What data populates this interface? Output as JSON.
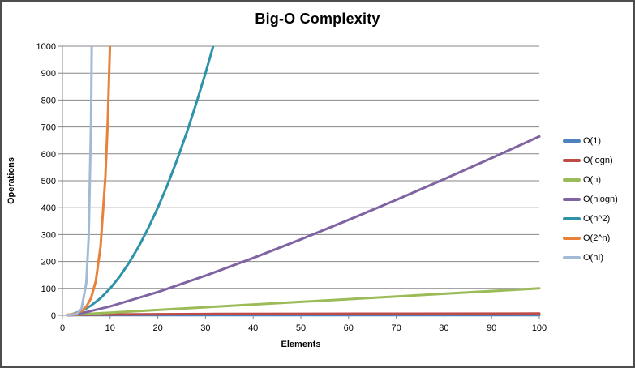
{
  "chart_data": {
    "type": "line",
    "title": "Big-O Complexity",
    "xlabel": "Elements",
    "ylabel": "Operations",
    "xlim": [
      0,
      100
    ],
    "ylim": [
      0,
      1000
    ],
    "xticks": [
      0,
      10,
      20,
      30,
      40,
      50,
      60,
      70,
      80,
      90,
      100
    ],
    "yticks": [
      0,
      100,
      200,
      300,
      400,
      500,
      600,
      700,
      800,
      900,
      1000
    ],
    "grid": "horizontal",
    "gridline_color": "#878787",
    "axis_color": "#878787",
    "legend_position": "right",
    "plot_background": "#ffffff",
    "series": [
      {
        "name": "O(1)",
        "color": "#4F81BD",
        "points": [
          [
            1,
            1
          ],
          [
            100,
            1
          ]
        ]
      },
      {
        "name": "O(logn)",
        "color": "#BE4B48",
        "points": [
          [
            1,
            0
          ],
          [
            2,
            1
          ],
          [
            4,
            2
          ],
          [
            8,
            3
          ],
          [
            16,
            4
          ],
          [
            32,
            5
          ],
          [
            64,
            6
          ],
          [
            100,
            6.64
          ]
        ]
      },
      {
        "name": "O(n)",
        "color": "#9BBB59",
        "points": [
          [
            1,
            1
          ],
          [
            100,
            100
          ]
        ]
      },
      {
        "name": "O(nlogn)",
        "color": "#8064A2",
        "points": [
          [
            1,
            0
          ],
          [
            2,
            2
          ],
          [
            5,
            11.6
          ],
          [
            10,
            33.2
          ],
          [
            20,
            86.4
          ],
          [
            30,
            147.2
          ],
          [
            40,
            212.9
          ],
          [
            50,
            282.2
          ],
          [
            60,
            354.4
          ],
          [
            70,
            429.0
          ],
          [
            80,
            505.8
          ],
          [
            90,
            584.3
          ],
          [
            100,
            664.4
          ]
        ]
      },
      {
        "name": "O(n^2)",
        "color": "#2E93A9",
        "points": [
          [
            1,
            1
          ],
          [
            2,
            4
          ],
          [
            4,
            16
          ],
          [
            6,
            36
          ],
          [
            8,
            64
          ],
          [
            10,
            100
          ],
          [
            12,
            144
          ],
          [
            14,
            196
          ],
          [
            16,
            256
          ],
          [
            18,
            324
          ],
          [
            20,
            400
          ],
          [
            22,
            484
          ],
          [
            24,
            576
          ],
          [
            26,
            676
          ],
          [
            28,
            784
          ],
          [
            30,
            900
          ],
          [
            32,
            1024
          ],
          [
            33,
            1089
          ]
        ]
      },
      {
        "name": "O(2^n)",
        "color": "#E8823A",
        "points": [
          [
            1,
            2
          ],
          [
            2,
            4
          ],
          [
            3,
            8
          ],
          [
            4,
            16
          ],
          [
            5,
            32
          ],
          [
            6,
            64
          ],
          [
            7,
            128
          ],
          [
            8,
            256
          ],
          [
            9,
            512
          ],
          [
            9.5,
            724
          ],
          [
            10,
            1024
          ],
          [
            10.3,
            1261
          ]
        ]
      },
      {
        "name": "O(n!)",
        "color": "#A3BAD6",
        "points": [
          [
            1,
            1
          ],
          [
            2,
            2
          ],
          [
            3,
            6
          ],
          [
            4,
            24
          ],
          [
            5,
            120
          ],
          [
            5.5,
            288
          ],
          [
            6,
            720
          ],
          [
            6.35,
            1400
          ]
        ]
      }
    ]
  }
}
